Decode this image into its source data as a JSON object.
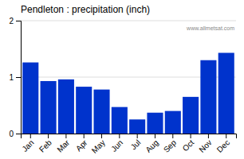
{
  "chart_data": {
    "type": "bar",
    "title": "Pendleton : precipitation (inch)",
    "categories": [
      "Jan",
      "Feb",
      "Mar",
      "Apr",
      "May",
      "Jun",
      "Jul",
      "Aug",
      "Sep",
      "Oct",
      "Nov",
      "Dec"
    ],
    "values": [
      1.26,
      0.93,
      0.96,
      0.83,
      0.78,
      0.47,
      0.25,
      0.37,
      0.4,
      0.65,
      1.3,
      1.43
    ],
    "color": "#0033CC",
    "ylim": [
      0,
      2
    ],
    "yticks": [
      0,
      1,
      2
    ],
    "grid": true,
    "annotations": [
      "www.allmetsat.com"
    ]
  }
}
